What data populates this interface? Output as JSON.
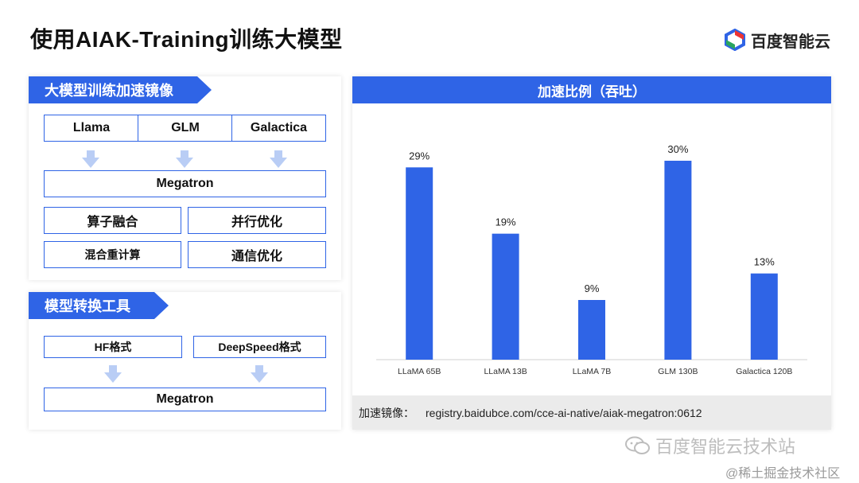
{
  "header": {
    "title": "使用AIAK-Training训练大模型",
    "logo_text": "百度智能云"
  },
  "left": {
    "section1": {
      "banner": "大模型训练加速镜像",
      "models": [
        "Llama",
        "GLM",
        "Galactica"
      ],
      "megatron": "Megatron",
      "features": [
        "算子融合",
        "并行优化",
        "混合重计算",
        "通信优化"
      ]
    },
    "section2": {
      "banner": "模型转换工具",
      "formats": [
        "HF格式",
        "DeepSpeed格式"
      ],
      "megatron": "Megatron"
    }
  },
  "chart_panel": {
    "header": "加速比例（吞吐）",
    "footer_label": "加速镜像：",
    "footer_value": "registry.baidubce.com/cce-ai-native/aiak-megatron:0612"
  },
  "chart_data": {
    "type": "bar",
    "title": "加速比例（吞吐）",
    "categories": [
      "LLaMA 65B",
      "LLaMA 13B",
      "LLaMA 7B",
      "GLM 130B",
      "Galactica 120B"
    ],
    "values": [
      29,
      19,
      9,
      30,
      13
    ],
    "data_labels": [
      "29%",
      "19%",
      "9%",
      "30%",
      "13%"
    ],
    "unit": "%",
    "ylim": [
      0,
      30
    ],
    "grid": false,
    "legend": "none",
    "bar_color": "#2f64e6"
  },
  "watermark": {
    "line1": "百度智能云技术站",
    "line2": "@稀土掘金技术社区"
  },
  "colors": {
    "accent": "#2f64e6",
    "arrow": "#b9cdf5"
  }
}
